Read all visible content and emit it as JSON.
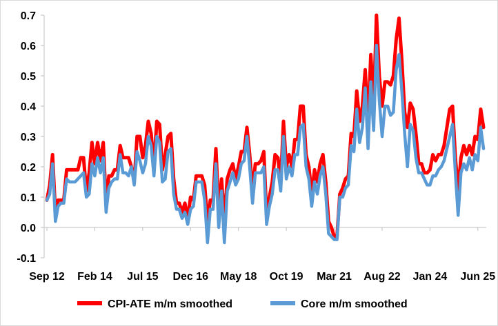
{
  "chart_data": {
    "type": "line",
    "title": "",
    "xlabel": "",
    "ylabel": "",
    "ylim": [
      -0.1,
      0.7
    ],
    "y_ticks": [
      "-0.1",
      "0.0",
      "0.1",
      "0.2",
      "0.3",
      "0.4",
      "0.5",
      "0.6",
      "0.7"
    ],
    "x_tick_labels": [
      "Sep 12",
      "Feb 14",
      "Jul 15",
      "Dec 16",
      "May 18",
      "Oct 19",
      "Mar 21",
      "Aug 22",
      "Jan 24",
      "Jun 25"
    ],
    "grid": false,
    "legend_position": "bottom",
    "start_period": "Sep 12",
    "frequency": "monthly",
    "series": [
      {
        "name": "CPI-ATE m/m smoothed",
        "color": "#ff0000",
        "values": [
          0.09,
          0.14,
          0.24,
          0.05,
          0.09,
          0.09,
          0.09,
          0.19,
          0.19,
          0.19,
          0.19,
          0.19,
          0.23,
          0.23,
          0.12,
          0.18,
          0.28,
          0.21,
          0.28,
          0.22,
          0.28,
          0.08,
          0.17,
          0.17,
          0.19,
          0.19,
          0.27,
          0.23,
          0.23,
          0.23,
          0.2,
          0.15,
          0.3,
          0.3,
          0.23,
          0.27,
          0.35,
          0.31,
          0.2,
          0.35,
          0.34,
          0.19,
          0.24,
          0.3,
          0.31,
          0.16,
          0.08,
          0.08,
          0.05,
          0.08,
          0.03,
          0.1,
          0.09,
          0.17,
          0.17,
          0.17,
          0.14,
          0.02,
          0.09,
          0.09,
          0.26,
          0.06,
          0.16,
          0.02,
          0.16,
          0.19,
          0.21,
          0.16,
          0.2,
          0.25,
          0.25,
          0.33,
          0.24,
          0.12,
          0.21,
          0.21,
          0.22,
          0.25,
          0.04,
          0.1,
          0.15,
          0.24,
          0.23,
          0.15,
          0.35,
          0.2,
          0.24,
          0.2,
          0.29,
          0.29,
          0.4,
          0.4,
          0.24,
          0.2,
          0.11,
          0.19,
          0.15,
          0.21,
          0.24,
          0.15,
          0.02,
          0.0,
          -0.03,
          -0.03,
          0.11,
          0.13,
          0.16,
          0.17,
          0.31,
          0.3,
          0.45,
          0.35,
          0.4,
          0.52,
          0.34,
          0.57,
          0.4,
          0.7,
          0.5,
          0.4,
          0.48,
          0.48,
          0.47,
          0.5,
          0.62,
          0.69,
          0.55,
          0.38,
          0.33,
          0.41,
          0.39,
          0.31,
          0.21,
          0.21,
          0.18,
          0.18,
          0.19,
          0.24,
          0.22,
          0.24,
          0.24,
          0.27,
          0.33,
          0.39,
          0.4,
          0.23,
          0.12,
          0.23,
          0.27,
          0.24,
          0.27,
          0.24,
          0.3,
          0.29,
          0.39,
          0.33
        ]
      },
      {
        "name": "Core m/m smoothed",
        "color": "#5b9bd5",
        "values": [
          0.09,
          0.11,
          0.21,
          0.02,
          0.07,
          0.08,
          0.08,
          0.16,
          0.15,
          0.15,
          0.15,
          0.16,
          0.17,
          0.18,
          0.1,
          0.11,
          0.21,
          0.17,
          0.23,
          0.18,
          0.23,
          0.05,
          0.13,
          0.15,
          0.16,
          0.16,
          0.24,
          0.18,
          0.18,
          0.17,
          0.2,
          0.14,
          0.25,
          0.22,
          0.18,
          0.21,
          0.3,
          0.27,
          0.17,
          0.3,
          0.28,
          0.15,
          0.16,
          0.25,
          0.26,
          0.11,
          0.06,
          0.06,
          0.03,
          0.05,
          0.01,
          0.06,
          0.07,
          0.15,
          0.15,
          0.15,
          0.09,
          -0.05,
          0.06,
          0.06,
          0.21,
          0.0,
          0.12,
          -0.05,
          0.12,
          0.15,
          0.18,
          0.14,
          0.16,
          0.21,
          0.22,
          0.3,
          0.2,
          0.08,
          0.18,
          0.18,
          0.18,
          0.2,
          0.01,
          0.07,
          0.11,
          0.19,
          0.19,
          0.12,
          0.3,
          0.16,
          0.2,
          0.17,
          0.24,
          0.24,
          0.33,
          0.34,
          0.2,
          0.16,
          0.07,
          0.15,
          0.11,
          0.17,
          0.2,
          0.11,
          -0.02,
          -0.03,
          -0.04,
          -0.04,
          0.1,
          0.1,
          0.13,
          0.14,
          0.27,
          0.25,
          0.39,
          0.28,
          0.33,
          0.46,
          0.26,
          0.48,
          0.32,
          0.6,
          0.42,
          0.3,
          0.4,
          0.4,
          0.37,
          0.38,
          0.52,
          0.57,
          0.45,
          0.31,
          0.2,
          0.34,
          0.32,
          0.23,
          0.18,
          0.18,
          0.16,
          0.14,
          0.14,
          0.17,
          0.17,
          0.19,
          0.2,
          0.22,
          0.26,
          0.3,
          0.34,
          0.18,
          0.04,
          0.18,
          0.21,
          0.19,
          0.23,
          0.19,
          0.24,
          0.22,
          0.33,
          0.26
        ]
      }
    ]
  }
}
